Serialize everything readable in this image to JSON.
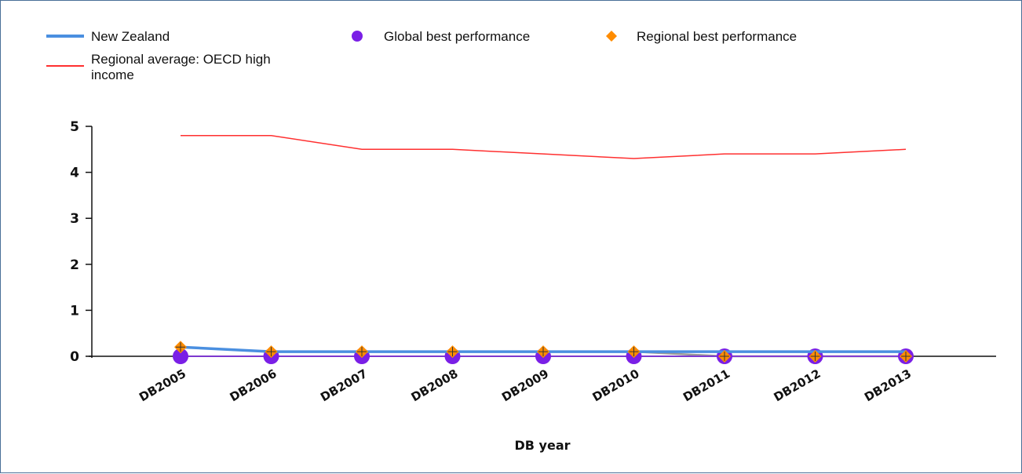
{
  "chart_data": {
    "type": "line",
    "xlabel": "DB year",
    "ylabel": "",
    "ylim": [
      0,
      5
    ],
    "yticks": [
      "0",
      "1",
      "2",
      "3",
      "4",
      "5"
    ],
    "categories": [
      "DB2005",
      "DB2006",
      "DB2007",
      "DB2008",
      "DB2009",
      "DB2010",
      "DB2011",
      "DB2012",
      "DB2013"
    ],
    "grid": false,
    "legend_position": "top",
    "series": [
      {
        "name": "New Zealand",
        "kind": "line",
        "color": "#4a8fe0",
        "values": [
          0.2,
          0.1,
          0.1,
          0.1,
          0.1,
          0.1,
          0.1,
          0.1,
          0.1
        ]
      },
      {
        "name": "Global best performance",
        "kind": "marker-circle",
        "color": "#7a1fe6",
        "values": [
          0,
          0,
          0,
          0,
          0,
          0,
          0,
          0,
          0
        ]
      },
      {
        "name": "Regional best performance",
        "kind": "marker-diamond",
        "color": "#ff8c00",
        "values": [
          0.2,
          0.1,
          0.1,
          0.1,
          0.1,
          0.1,
          0,
          0,
          0
        ]
      },
      {
        "name": "Regional average: OECD high income",
        "kind": "line",
        "color": "#ff3030",
        "values": [
          4.8,
          4.8,
          4.5,
          4.5,
          4.4,
          4.3,
          4.4,
          4.4,
          4.5
        ]
      }
    ]
  }
}
